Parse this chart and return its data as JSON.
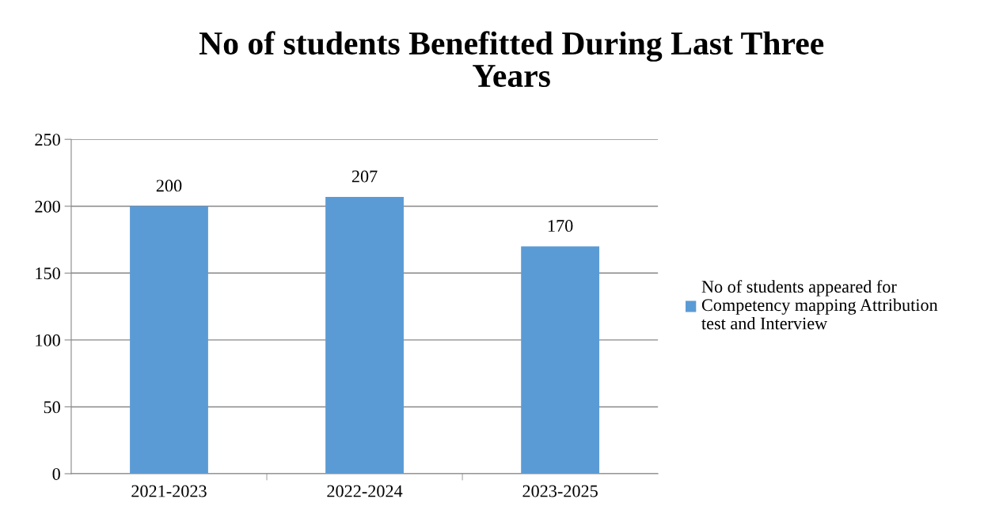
{
  "chart_data": {
    "type": "bar",
    "title": "No of students Benefitted During Last Three\nYears",
    "categories": [
      "2021-2023",
      "2022-2024",
      "2023-2025"
    ],
    "series": [
      {
        "name": "No of students appeared for\nCompetency mapping Attribution\ntest and Interview",
        "color": "#5b9bd5",
        "values": [
          200,
          207,
          170
        ]
      }
    ],
    "ylim": [
      0,
      250
    ],
    "yticks": [
      0,
      50,
      100,
      150,
      200,
      250
    ],
    "grid": "y",
    "legend": "right",
    "data_labels": true
  }
}
